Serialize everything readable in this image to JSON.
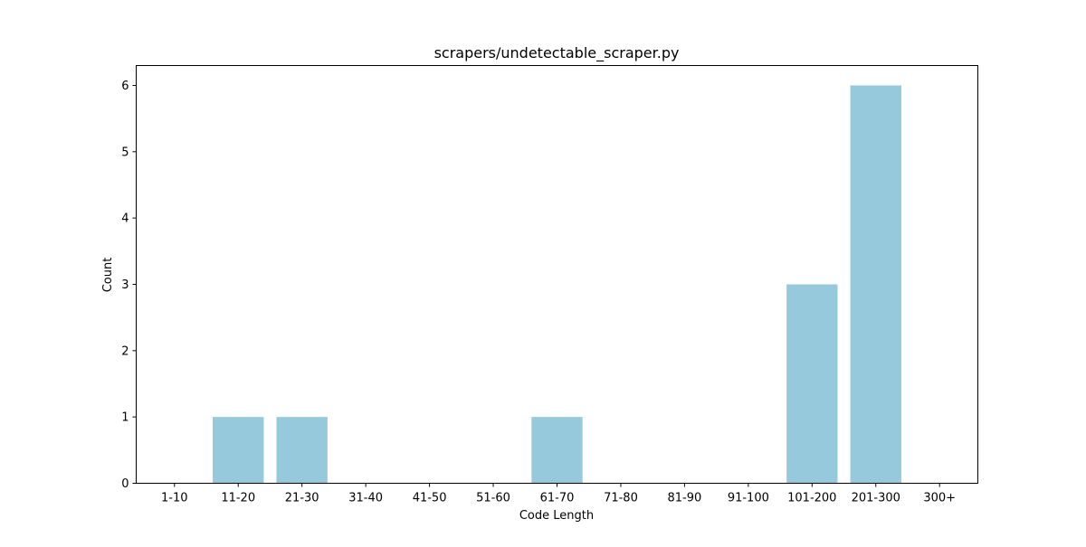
{
  "chart_data": {
    "type": "bar",
    "title": "scrapers/undetectable_scraper.py",
    "xlabel": "Code Length",
    "ylabel": "Count",
    "categories": [
      "1-10",
      "11-20",
      "21-30",
      "31-40",
      "41-50",
      "51-60",
      "61-70",
      "71-80",
      "81-90",
      "91-100",
      "101-200",
      "201-300",
      "300+"
    ],
    "values": [
      0,
      1,
      1,
      0,
      0,
      0,
      1,
      0,
      0,
      0,
      3,
      6,
      0
    ],
    "ylim": [
      0,
      6.3
    ],
    "yticks": [
      0,
      1,
      2,
      3,
      4,
      5,
      6
    ],
    "grid": false,
    "legend": "none",
    "bar_color": "#96c9dc"
  }
}
